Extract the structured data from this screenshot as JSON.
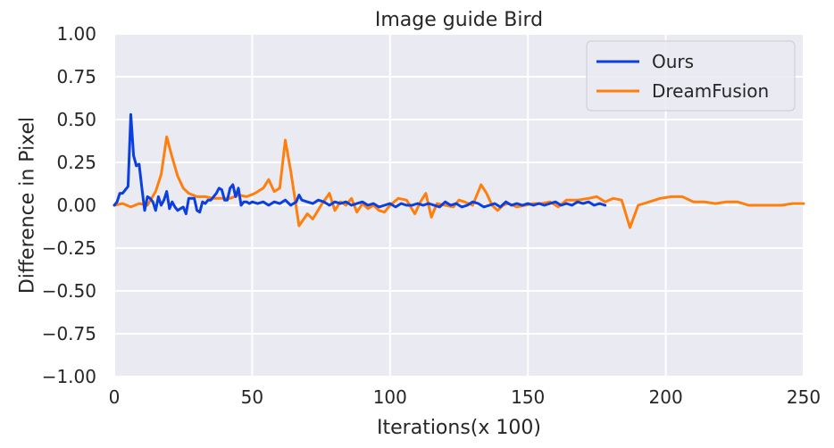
{
  "chart_data": {
    "type": "line",
    "title": "Image guide Bird",
    "xlabel": "Iterations(x 100)",
    "ylabel": "Difference in Pixel",
    "xlim": [
      0,
      250
    ],
    "ylim": [
      -1.0,
      1.0
    ],
    "xticks": [
      0,
      50,
      100,
      150,
      200,
      250
    ],
    "xtick_labels": [
      "0",
      "50",
      "100",
      "150",
      "200",
      "250"
    ],
    "yticks": [
      1.0,
      0.75,
      0.5,
      0.25,
      0.0,
      -0.25,
      -0.5,
      -0.75,
      -1.0
    ],
    "ytick_labels": [
      "1.00",
      "0.75",
      "0.50",
      "0.25",
      "0.00",
      "−0.25",
      "−0.50",
      "−0.75",
      "−1.00"
    ],
    "grid": true,
    "legend_position": "top-right",
    "series": [
      {
        "name": "Ours",
        "color": "#0b3fe0",
        "x": [
          0,
          1,
          2,
          3,
          4,
          5,
          6,
          7,
          8,
          9,
          10,
          11,
          12,
          13,
          14,
          15,
          16,
          17,
          18,
          19,
          20,
          21,
          22,
          23,
          24,
          25,
          26,
          27,
          28,
          29,
          30,
          31,
          32,
          33,
          34,
          35,
          36,
          37,
          38,
          39,
          40,
          41,
          42,
          43,
          44,
          45,
          46,
          47,
          48,
          49,
          50,
          52,
          54,
          56,
          58,
          60,
          62,
          64,
          66,
          67,
          68,
          70,
          72,
          74,
          76,
          78,
          80,
          82,
          84,
          86,
          88,
          90,
          92,
          94,
          96,
          98,
          100,
          102,
          104,
          106,
          108,
          110,
          112,
          114,
          116,
          118,
          120,
          122,
          124,
          126,
          128,
          130,
          132,
          134,
          136,
          138,
          140,
          142,
          144,
          146,
          148,
          150,
          152,
          154,
          156,
          158,
          160,
          162,
          164,
          166,
          168,
          170,
          172,
          174,
          176,
          178
        ],
        "y": [
          0.0,
          0.02,
          0.07,
          0.07,
          0.09,
          0.11,
          0.53,
          0.29,
          0.23,
          0.24,
          0.1,
          -0.03,
          0.05,
          0.04,
          0.02,
          -0.03,
          0.05,
          0.0,
          0.03,
          0.08,
          -0.02,
          0.02,
          -0.01,
          -0.03,
          -0.02,
          -0.01,
          -0.05,
          0.04,
          0.04,
          0.04,
          -0.03,
          -0.04,
          0.02,
          0.01,
          0.03,
          0.03,
          0.05,
          0.07,
          0.1,
          0.09,
          0.03,
          0.03,
          0.1,
          0.12,
          0.05,
          0.1,
          0.0,
          0.02,
          0.02,
          0.01,
          0.02,
          0.01,
          0.02,
          0.0,
          0.02,
          0.01,
          0.03,
          0.0,
          0.02,
          0.06,
          0.03,
          0.02,
          0.01,
          0.03,
          0.02,
          0.0,
          0.02,
          0.01,
          0.02,
          0.0,
          0.01,
          0.02,
          0.0,
          0.01,
          -0.01,
          0.0,
          0.01,
          -0.01,
          0.01,
          0.0,
          0.0,
          0.01,
          0.0,
          0.01,
          0.0,
          -0.01,
          0.02,
          0.0,
          0.01,
          -0.01,
          0.0,
          0.02,
          0.01,
          -0.01,
          0.0,
          0.01,
          -0.01,
          0.02,
          0.0,
          0.01,
          0.0,
          0.01,
          0.0,
          0.01,
          0.0,
          0.01,
          0.02,
          0.0,
          0.01,
          0.0,
          0.02,
          0.01,
          0.02,
          0.0,
          0.01,
          0.0
        ]
      },
      {
        "name": "DreamFusion",
        "color": "#ff7f0e",
        "x": [
          0,
          3,
          6,
          9,
          12,
          15,
          17,
          19,
          21,
          23,
          25,
          27,
          30,
          33,
          36,
          39,
          42,
          45,
          48,
          51,
          54,
          56,
          58,
          60,
          62,
          64,
          67,
          70,
          72,
          75,
          78,
          80,
          82,
          84,
          86,
          88,
          90,
          92,
          94,
          96,
          98,
          100,
          103,
          106,
          109,
          111,
          113,
          115,
          117,
          120,
          123,
          125,
          127,
          130,
          133,
          135,
          137,
          139,
          141,
          143,
          146,
          149,
          152,
          155,
          158,
          161,
          164,
          166,
          168,
          172,
          175,
          178,
          181,
          184,
          187,
          190,
          194,
          198,
          202,
          206,
          210,
          214,
          218,
          222,
          226,
          230,
          234,
          238,
          242,
          246,
          250
        ],
        "y": [
          0.0,
          0.01,
          -0.01,
          0.01,
          0.0,
          0.08,
          0.18,
          0.4,
          0.28,
          0.17,
          0.1,
          0.07,
          0.05,
          0.05,
          0.04,
          0.04,
          0.04,
          0.06,
          0.05,
          0.07,
          0.1,
          0.15,
          0.08,
          0.1,
          0.38,
          0.2,
          -0.12,
          -0.05,
          -0.08,
          0.0,
          0.07,
          -0.03,
          0.02,
          0.0,
          0.04,
          -0.04,
          0.01,
          -0.02,
          0.0,
          -0.03,
          -0.04,
          0.0,
          0.04,
          0.03,
          -0.05,
          0.02,
          0.07,
          -0.07,
          0.01,
          0.0,
          -0.01,
          0.03,
          0.02,
          0.0,
          0.12,
          0.07,
          0.0,
          -0.03,
          0.0,
          0.01,
          -0.01,
          0.0,
          0.01,
          0.01,
          0.02,
          -0.01,
          0.03,
          0.03,
          0.03,
          0.04,
          0.05,
          0.02,
          0.04,
          0.03,
          -0.13,
          0.0,
          0.02,
          0.04,
          0.05,
          0.05,
          0.02,
          0.02,
          0.01,
          0.02,
          0.02,
          0.0,
          0.0,
          0.0,
          0.0,
          0.01,
          0.01
        ]
      }
    ]
  }
}
